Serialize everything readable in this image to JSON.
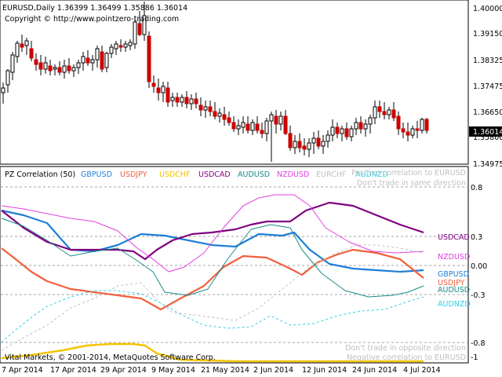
{
  "main_chart": {
    "symbol_line": "EURUSD,Daily  1.36399 1.36499 1.35886 1.36014",
    "copyright": "Copyright © http://www.pointzero-trading.com",
    "price_ticks": [
      "1.40000",
      "1.39150",
      "1.38325",
      "1.37475",
      "1.36650",
      "1.35800",
      "1.34975"
    ],
    "current_price": "1.36014",
    "colors": {
      "bull": "#ffffff",
      "bear": "#cc0000",
      "outline": "#000000"
    }
  },
  "indicator": {
    "title": "PZ Correlation (50)",
    "legend": [
      {
        "label": "GBPUSD",
        "color": "#1e7fd8"
      },
      {
        "label": "USDJPY",
        "color": "#f0603c"
      },
      {
        "label": "USDCHF",
        "color": "#f4c400"
      },
      {
        "label": "USDCAD",
        "color": "#800080"
      },
      {
        "label": "AUDUSD",
        "color": "#1a8a8a"
      },
      {
        "label": "NZDUSD",
        "color": "#e040e0"
      },
      {
        "label": "EURCHF",
        "color": "#c0c0c0"
      },
      {
        "label": "AUDNZD",
        "color": "#30d0e8"
      }
    ],
    "notes": {
      "top1": "Positive correlation to EURUSD",
      "top2": "Don't trade in same direction",
      "bottom1": "Don't trade in opposite direction",
      "bottom2": "Negative correlation to EURUSD"
    },
    "levels": [
      "0.8",
      "0.3",
      "0.00",
      "-0.3",
      "-0.8",
      "-1"
    ],
    "right_labels": [
      {
        "label": "USDCAD",
        "color": "#800080"
      },
      {
        "label": "NZDUSD",
        "color": "#e040e0"
      },
      {
        "label": "GBPUSD",
        "color": "#1e7fd8"
      },
      {
        "label": "USDJPY",
        "color": "#f0603c"
      },
      {
        "label": "AUDUSD",
        "color": "#1a8a8a"
      },
      {
        "label": "AUDNZD",
        "color": "#30d0e8"
      }
    ],
    "footer": "Vital Markets, © 2001-2014, MetaQuotes Software Corp."
  },
  "time_axis": [
    "7 Apr 2014",
    "17 Apr 2014",
    "29 Apr 2014",
    "9 May 2014",
    "21 May 2014",
    "2 Jun 2014",
    "12 Jun 2014",
    "24 Jun 2014",
    "4 Jul 2014"
  ]
}
